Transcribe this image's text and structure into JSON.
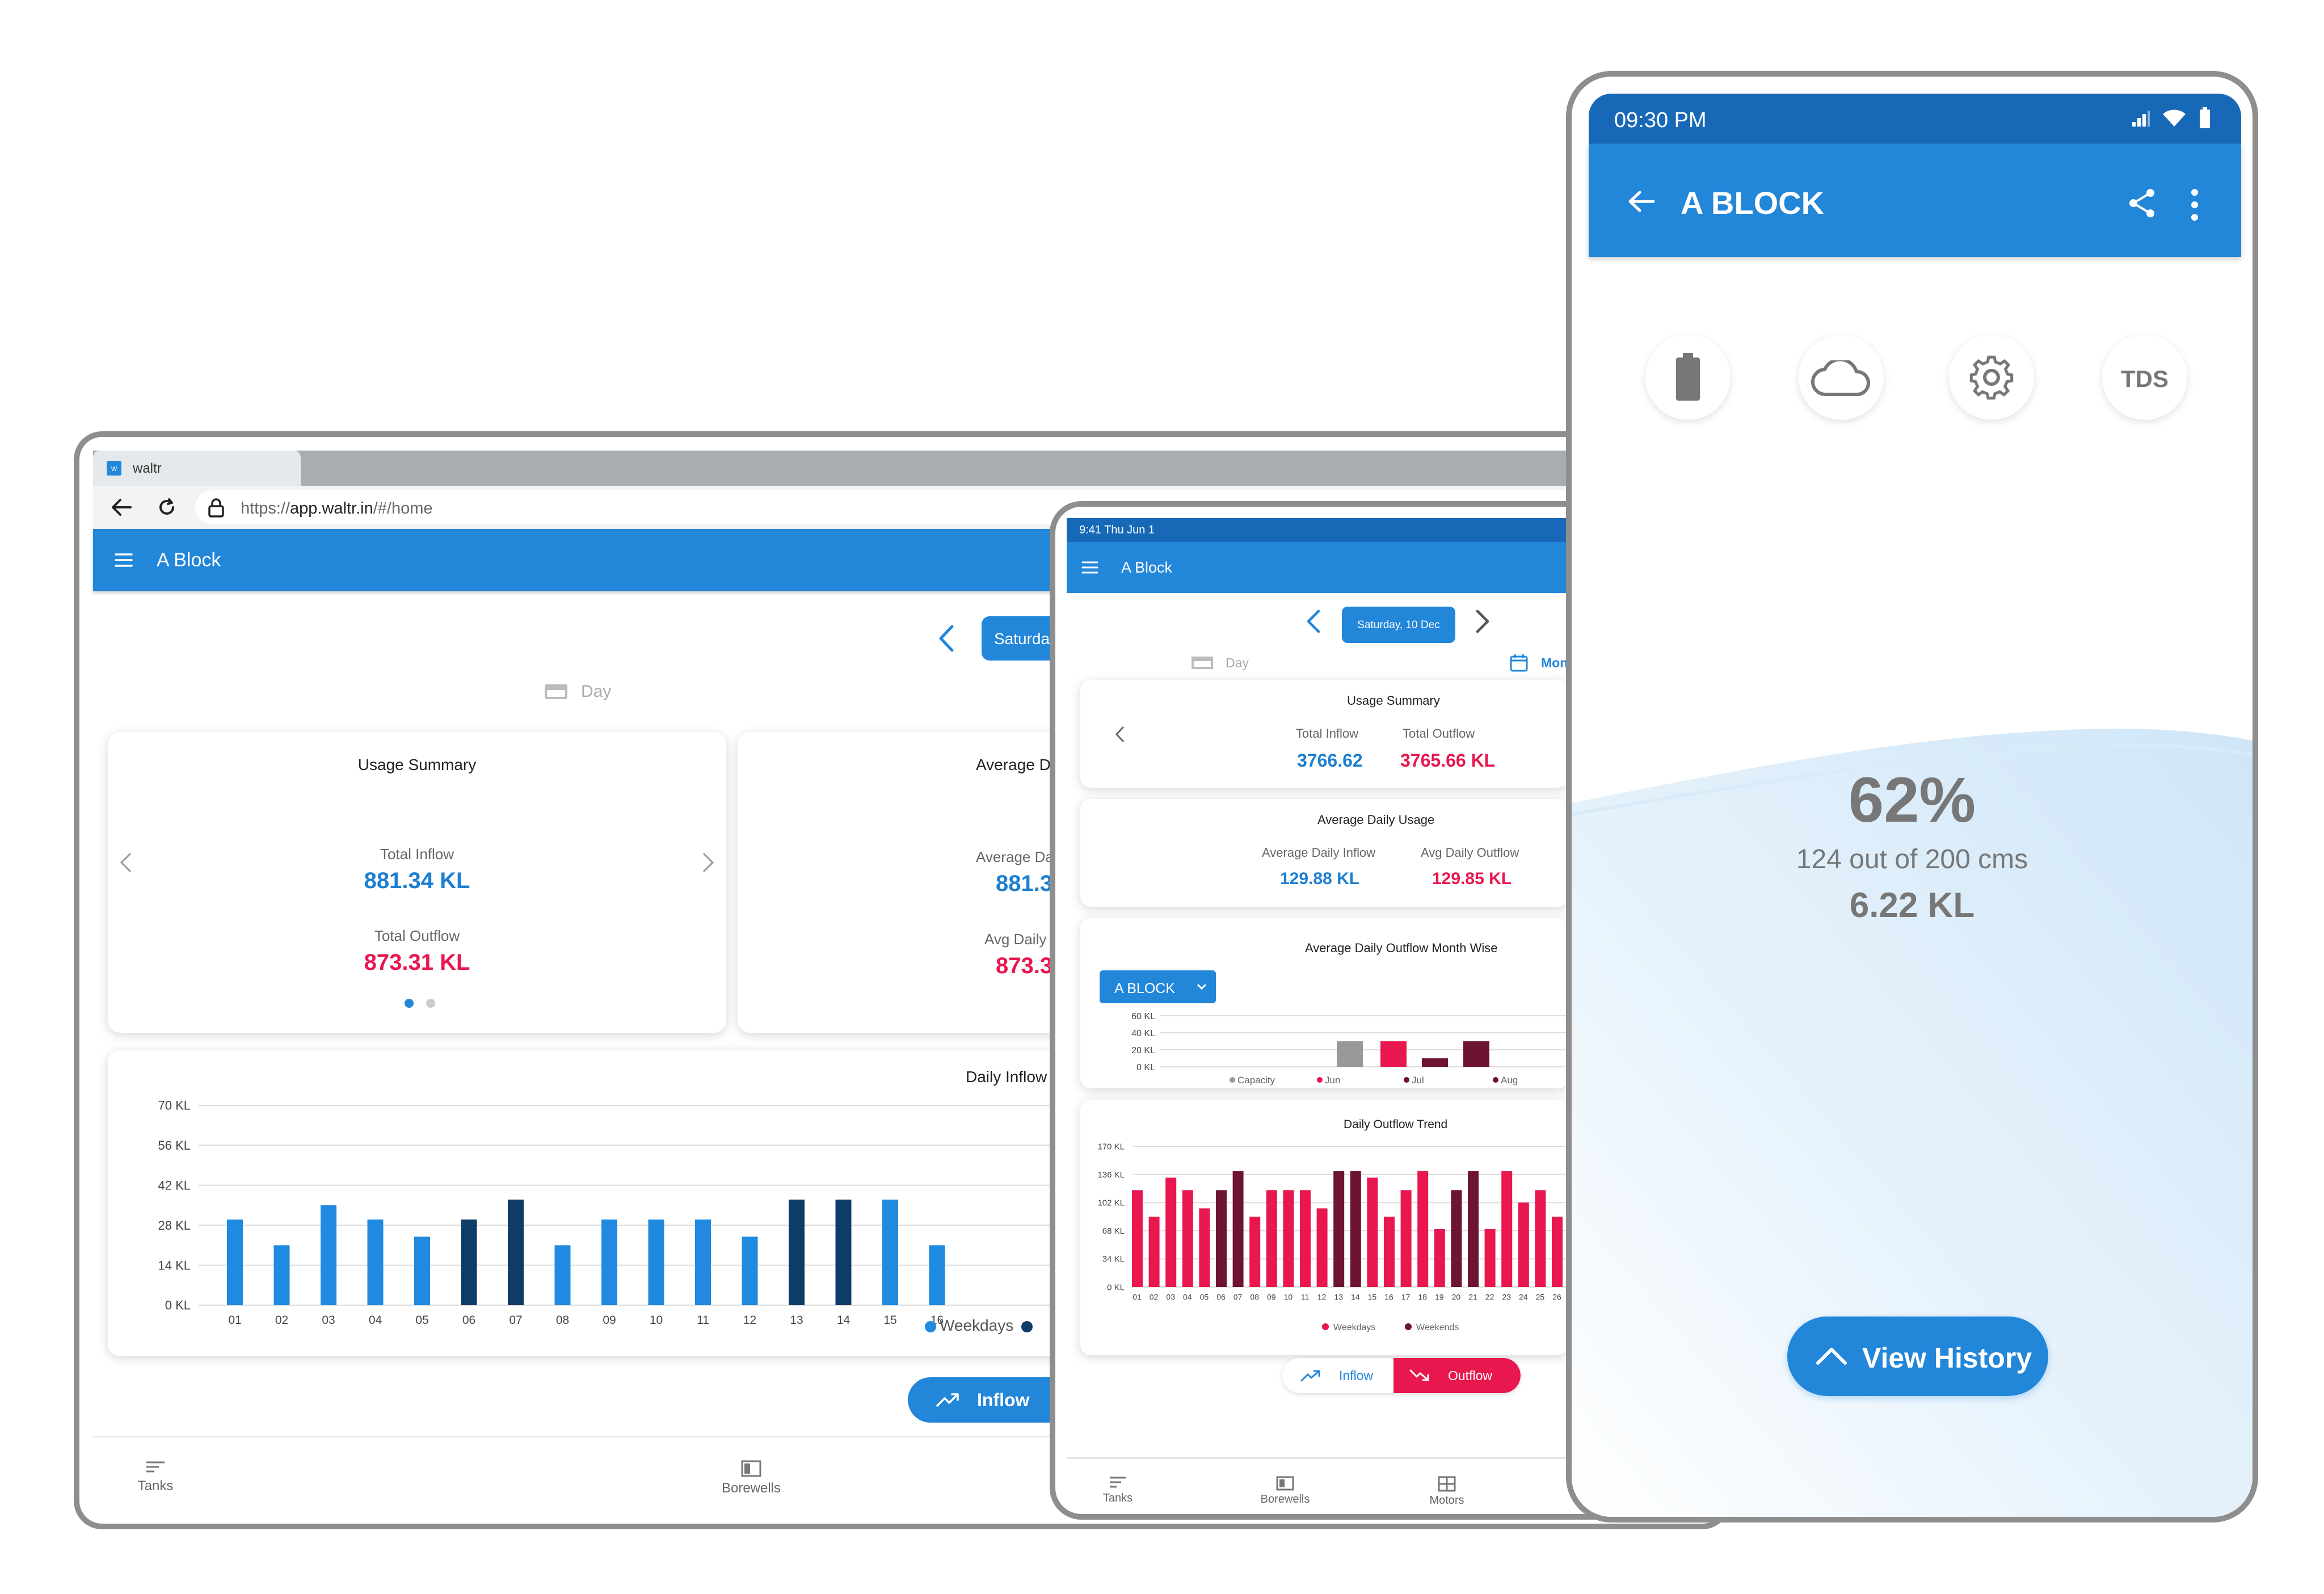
{
  "browser": {
    "tab_title": "waltr",
    "url_prefix": "https://",
    "url_host": "app.waltr.in",
    "url_path": "/#/home",
    "header_title": "A Block",
    "date_label": "Saturday,",
    "view_label": "Day",
    "usage_summary": {
      "title": "Usage Summary",
      "inflow_label": "Total Inflow",
      "inflow_value": "881.34 KL",
      "outflow_label": "Total Outflow",
      "outflow_value": "873.31 KL"
    },
    "average_card": {
      "title": "Average Da",
      "inflow_label": "Average Da",
      "inflow_value": "881.3",
      "outflow_label": "Avg Daily",
      "outflow_value": "873.3"
    },
    "chart_title": "Daily Inflow T",
    "legend": [
      "Weekdays"
    ],
    "inflow_button": "Inflow",
    "nav": [
      "Tanks",
      "Borewells"
    ]
  },
  "tablet": {
    "status_time": "9:41 Thu Jun 1",
    "header_title": "A Block",
    "date_label": "Saturday, 10 Dec",
    "view_day": "Day",
    "view_month": "Mon",
    "usage_summary": {
      "title": "Usage Summary",
      "inflow_label": "Total Inflow",
      "inflow_value": "3766.62",
      "outflow_label": "Total Outflow",
      "outflow_value": "3765.66 KL"
    },
    "average_usage": {
      "title": "Average Daily Usage",
      "inflow_label": "Average Daily Inflow",
      "inflow_value": "129.88 KL",
      "outflow_label": "Avg Daily Outflow",
      "outflow_value": "129.85 KL"
    },
    "monthwise_title": "Average Daily Outflow Month Wise",
    "block_select": "A BLOCK",
    "trend_title": "Daily Outflow Trend",
    "toggle_inflow": "Inflow",
    "toggle_outflow": "Outflow",
    "nav": [
      "Tanks",
      "Borewells",
      "Motors"
    ]
  },
  "phone": {
    "status_time": "09:30 PM",
    "title": "A BLOCK",
    "sensor_icons": [
      "battery-icon",
      "cloud-icon",
      "gear-icon"
    ],
    "tds_label": "TDS",
    "percent": "62%",
    "level_text": "124 out of 200 cms",
    "volume": "6.22 KL",
    "history_button": "View History"
  },
  "colors": {
    "primary": "#2286d9",
    "inflow": "#1e7fd0",
    "outflow": "#e8174e",
    "weekday_bar": "#1f8ae0",
    "weekend_bar": "#0f3c66",
    "maroon": "#6d1432",
    "capacity": "#999999"
  },
  "chart_data": [
    {
      "type": "bar",
      "chart": "browser-daily-inflow",
      "ylabel_ticks": [
        "0 KL",
        "14 KL",
        "28 KL",
        "42 KL",
        "56 KL",
        "70 KL"
      ],
      "ylim": [
        0,
        70
      ],
      "categories": [
        "01",
        "02",
        "03",
        "04",
        "05",
        "06",
        "07",
        "08",
        "09",
        "10",
        "11",
        "12",
        "13",
        "14",
        "15",
        "16"
      ],
      "values": [
        30,
        21,
        35,
        30,
        24,
        30,
        37,
        21,
        30,
        30,
        30,
        24,
        37,
        37,
        37,
        21
      ],
      "weekend": [
        false,
        false,
        false,
        false,
        false,
        true,
        true,
        false,
        false,
        false,
        false,
        false,
        true,
        true,
        false,
        false
      ],
      "legend": [
        "Weekdays"
      ]
    },
    {
      "type": "bar",
      "chart": "tablet-monthwise",
      "ylabel_ticks": [
        "0 KL",
        "20 KL",
        "40 KL",
        "60 KL"
      ],
      "ylim": [
        0,
        60
      ],
      "legend": [
        "Capacity",
        "Jun",
        "Jul",
        "Aug"
      ],
      "values": [
        30,
        30,
        10,
        30
      ]
    },
    {
      "type": "bar",
      "chart": "tablet-daily-outflow-trend",
      "ylabel_ticks": [
        "0 KL",
        "34 KL",
        "68 KL",
        "102 KL",
        "136 KL",
        "170 KL"
      ],
      "ylim": [
        0,
        170
      ],
      "categories": [
        "01",
        "02",
        "03",
        "04",
        "05",
        "06",
        "07",
        "08",
        "09",
        "10",
        "11",
        "12",
        "13",
        "14",
        "15",
        "16",
        "17",
        "18",
        "19",
        "20",
        "21",
        "22",
        "23",
        "24",
        "25",
        "26"
      ],
      "values": [
        117,
        85,
        132,
        117,
        95,
        117,
        140,
        85,
        117,
        117,
        117,
        95,
        140,
        140,
        132,
        85,
        117,
        140,
        70,
        117,
        140,
        70,
        140,
        102,
        117,
        85
      ],
      "weekend": [
        false,
        false,
        false,
        false,
        false,
        true,
        true,
        false,
        false,
        false,
        false,
        false,
        true,
        true,
        false,
        false,
        false,
        false,
        false,
        true,
        true,
        false,
        false,
        false,
        false,
        false
      ],
      "legend": [
        "Weekdays",
        "Weekends"
      ]
    }
  ]
}
